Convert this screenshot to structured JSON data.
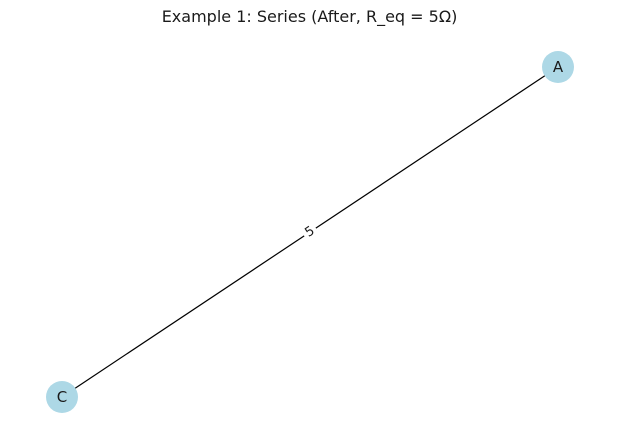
{
  "title": "Example 1: Series (After, R_eq = 5Ω)",
  "node_color": "#add8e6",
  "edge_color": "#000000",
  "nodes": [
    {
      "id": "A",
      "label": "A"
    },
    {
      "id": "C",
      "label": "C"
    }
  ],
  "edges": [
    {
      "from": "A",
      "to": "C",
      "label": "5"
    }
  ]
}
